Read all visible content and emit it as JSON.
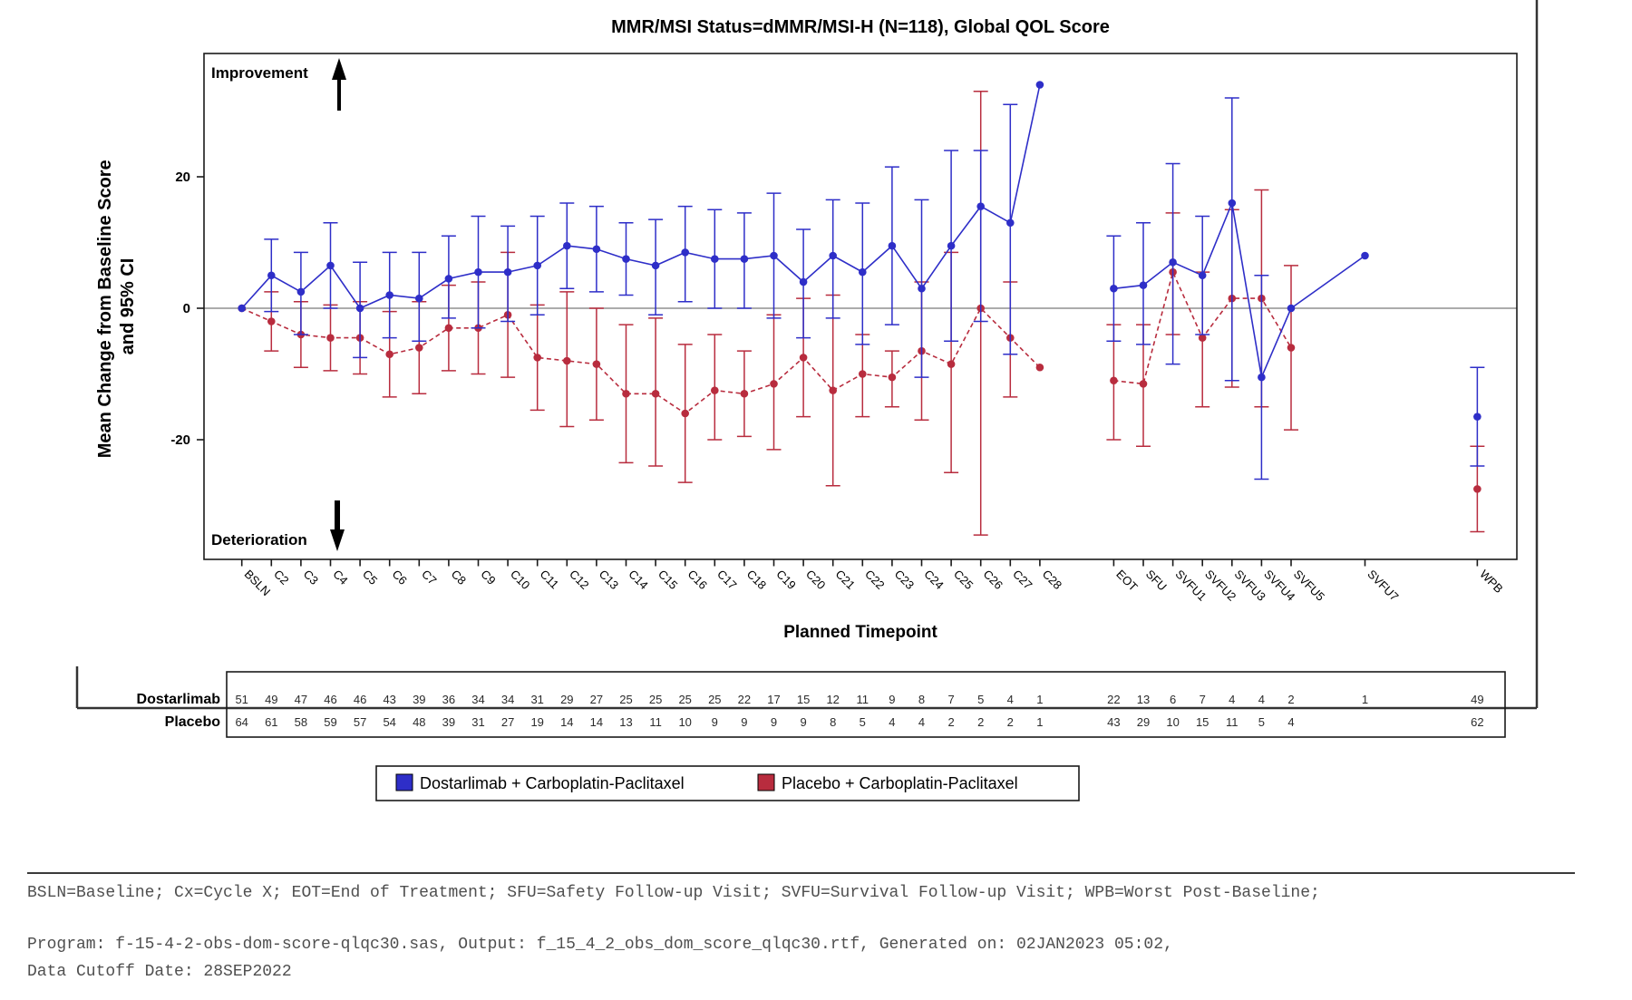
{
  "title": "MMR/MSI Status=dMMR/MSI-H (N=118), Global QOL Score",
  "chart_data": {
    "type": "line",
    "title": "MMR/MSI Status=dMMR/MSI-H (N=118), Global QOL Score",
    "ylabel_line1": "Mean Change from Baseline Score",
    "ylabel_line2": "and 95% CI",
    "xlabel": "Planned Timepoint",
    "yticks": [
      20,
      0,
      -20
    ],
    "ylim": [
      -38,
      38
    ],
    "grid": false,
    "annotations": {
      "top": "Improvement",
      "bottom": "Deterioration"
    },
    "timepoints": [
      "BSLN",
      "C2",
      "C3",
      "C4",
      "C5",
      "C6",
      "C7",
      "C8",
      "C9",
      "C10",
      "C11",
      "C12",
      "C13",
      "C14",
      "C15",
      "C16",
      "C17",
      "C18",
      "C19",
      "C20",
      "C21",
      "C22",
      "C23",
      "C24",
      "C25",
      "C26",
      "C27",
      "C28",
      "EOT",
      "SFU",
      "SVFU1",
      "SVFU2",
      "SVFU3",
      "SVFU4",
      "SVFU5",
      "SVFU7",
      "WPB"
    ],
    "slots": [
      0,
      1,
      2,
      3,
      4,
      5,
      6,
      7,
      8,
      9,
      10,
      11,
      12,
      13,
      14,
      15,
      16,
      17,
      18,
      19,
      20,
      21,
      22,
      23,
      24,
      25,
      26,
      27,
      29.5,
      30.5,
      31.5,
      32.5,
      33.5,
      34.5,
      35.5,
      38,
      41.8
    ],
    "series": [
      {
        "name": "Dostarlimab + Carboplatin-Paclitaxel",
        "color": "#2E2EC8",
        "line": "solid",
        "connect": [
          [
            0,
            27
          ],
          [
            28,
            35
          ]
        ],
        "means": [
          0,
          5,
          2.5,
          6.5,
          0,
          2,
          1.5,
          4.5,
          5.5,
          5.5,
          6.5,
          9.5,
          9,
          7.5,
          6.5,
          8.5,
          7.5,
          7.5,
          8,
          4,
          8,
          5.5,
          9.5,
          3,
          9.5,
          15.5,
          13,
          34,
          3,
          3.5,
          7,
          5,
          16,
          -10.5,
          0,
          8,
          -16.5
        ],
        "lo": [
          null,
          -0.5,
          -4,
          0,
          -7.5,
          -4.5,
          -5,
          -1.5,
          -3,
          -2,
          -1,
          3,
          2.5,
          2,
          -1,
          1,
          0,
          0,
          -1.5,
          -4.5,
          -1.5,
          -5.5,
          -2.5,
          -10.5,
          -5,
          -2,
          -7,
          null,
          -5,
          -5.5,
          -8.5,
          -4,
          -11,
          -26,
          null,
          null,
          -24
        ],
        "hi": [
          null,
          10.5,
          8.5,
          13,
          7,
          8.5,
          8.5,
          11,
          14,
          12.5,
          14,
          16,
          15.5,
          13,
          13.5,
          15.5,
          15,
          14.5,
          17.5,
          12,
          16.5,
          16,
          21.5,
          16.5,
          24,
          24,
          31,
          null,
          11,
          13,
          22,
          14,
          32,
          5,
          null,
          null,
          -9
        ]
      },
      {
        "name": "Placebo + Carboplatin-Paclitaxel",
        "color": "#B82C3E",
        "line": "dashed",
        "connect": [
          [
            0,
            27
          ],
          [
            28,
            34
          ]
        ],
        "means": [
          0,
          -2,
          -4,
          -4.5,
          -4.5,
          -7,
          -6,
          -3,
          -3,
          -1,
          -7.5,
          -8,
          -8.5,
          -13,
          -13,
          -16,
          -12.5,
          -13,
          -11.5,
          -7.5,
          -12.5,
          -10,
          -10.5,
          -6.5,
          -8.5,
          0,
          -4.5,
          -9,
          -11,
          -11.5,
          5.5,
          -4.5,
          1.5,
          1.5,
          -6,
          null,
          -27.5
        ],
        "lo": [
          null,
          -6.5,
          -9,
          -9.5,
          -10,
          -13.5,
          -13,
          -9.5,
          -10,
          -10.5,
          -15.5,
          -18,
          -17,
          -23.5,
          -24,
          -26.5,
          -20,
          -19.5,
          -21.5,
          -16.5,
          -27,
          -16.5,
          -15,
          -17,
          -25,
          -34.5,
          -13.5,
          null,
          -20,
          -21,
          -4,
          -15,
          -12,
          -15,
          -18.5,
          null,
          -34
        ],
        "hi": [
          null,
          2.5,
          1,
          0.5,
          1,
          -0.5,
          1,
          3.5,
          4,
          8.5,
          0.5,
          2.5,
          0,
          -2.5,
          -1.5,
          -5.5,
          -4,
          -6.5,
          -1,
          1.5,
          2,
          -4,
          -6.5,
          4,
          8.5,
          33,
          4,
          null,
          -2.5,
          -2.5,
          14.5,
          5.5,
          15,
          18,
          6.5,
          null,
          -21
        ]
      }
    ],
    "at_risk": {
      "rows": [
        {
          "label": "Dostarlimab",
          "counts": [
            51,
            49,
            47,
            46,
            46,
            43,
            39,
            36,
            34,
            34,
            31,
            29,
            27,
            25,
            25,
            25,
            25,
            22,
            17,
            15,
            12,
            11,
            9,
            8,
            7,
            5,
            4,
            1,
            22,
            13,
            6,
            7,
            4,
            4,
            2,
            1,
            49
          ]
        },
        {
          "label": "Placebo",
          "counts": [
            64,
            61,
            58,
            59,
            57,
            54,
            48,
            39,
            31,
            27,
            19,
            14,
            14,
            13,
            11,
            10,
            9,
            9,
            9,
            9,
            8,
            5,
            4,
            4,
            2,
            2,
            2,
            1,
            43,
            29,
            10,
            15,
            11,
            5,
            4,
            null,
            62
          ]
        }
      ]
    },
    "legend_position": "bottom"
  },
  "legend": {
    "items": [
      {
        "label": "Dostarlimab + Carboplatin-Paclitaxel",
        "color": "#2E2EC8"
      },
      {
        "label": "Placebo + Carboplatin-Paclitaxel",
        "color": "#B82C3E"
      }
    ]
  },
  "footnotes": {
    "abbrev": "BSLN=Baseline; Cx=Cycle X; EOT=End of Treatment; SFU=Safety Follow-up Visit; SVFU=Survival Follow-up Visit; WPB=Worst Post-Baseline;",
    "program": "Program: f-15-4-2-obs-dom-score-qlqc30.sas, Output: f_15_4_2_obs_dom_score_qlqc30.rtf, Generated on: 02JAN2023 05:02,",
    "cutoff": "Data Cutoff Date: 28SEP2022"
  }
}
